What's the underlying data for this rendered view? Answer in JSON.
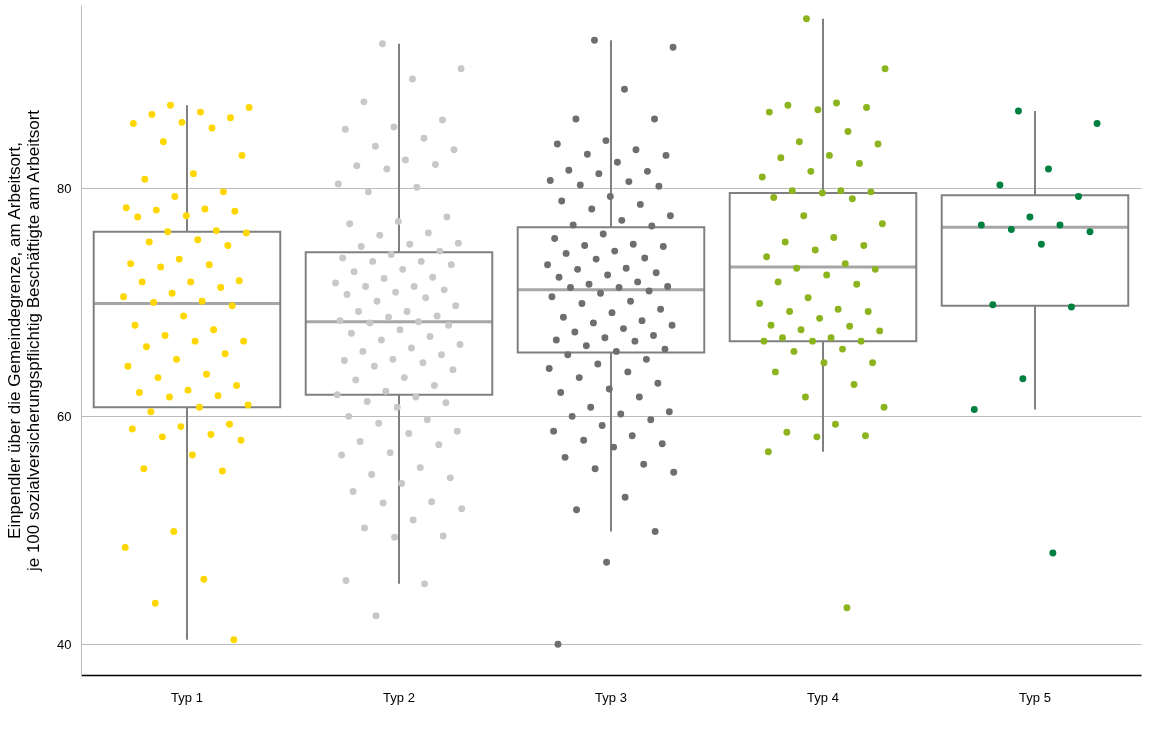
{
  "chart_data": {
    "type": "box",
    "ylabel": "Einpendler über die Gemeindegrenze, am Arbeitsort,\nje 100 sozialversicherungspflichtig Beschäftigte am Arbeitsort",
    "categories": [
      "Typ 1",
      "Typ 2",
      "Typ 3",
      "Typ 4",
      "Typ 5"
    ],
    "boxes": [
      {
        "low": 40.4,
        "q1": 60.8,
        "median": 69.9,
        "q3": 76.2,
        "high": 87.3
      },
      {
        "low": 45.3,
        "q1": 61.9,
        "median": 68.3,
        "q3": 74.4,
        "high": 92.7
      },
      {
        "low": 49.9,
        "q1": 65.6,
        "median": 71.1,
        "q3": 76.6,
        "high": 93.0
      },
      {
        "low": 56.9,
        "q1": 66.6,
        "median": 73.1,
        "q3": 79.6,
        "high": 94.9
      },
      {
        "low": 60.6,
        "q1": 69.7,
        "median": 76.6,
        "q3": 79.4,
        "high": 86.8
      }
    ],
    "ylim": [
      37.3,
      96.1
    ],
    "yticks": [
      40,
      60,
      80
    ],
    "grid": "y",
    "series": [
      {
        "type": "scatter",
        "color": "#ffd700",
        "x": [
          "Typ 1",
          "Typ 1",
          "Typ 1",
          "Typ 1",
          "Typ 1",
          "Typ 1",
          "Typ 1",
          "Typ 1",
          "Typ 1",
          "Typ 1",
          "Typ 1",
          "Typ 1",
          "Typ 1",
          "Typ 1",
          "Typ 1",
          "Typ 1",
          "Typ 1",
          "Typ 1",
          "Typ 1",
          "Typ 1",
          "Typ 1",
          "Typ 1",
          "Typ 1",
          "Typ 1",
          "Typ 1",
          "Typ 1",
          "Typ 1",
          "Typ 1",
          "Typ 1",
          "Typ 1",
          "Typ 1",
          "Typ 1",
          "Typ 1",
          "Typ 1",
          "Typ 1",
          "Typ 1",
          "Typ 1",
          "Typ 1",
          "Typ 1",
          "Typ 1",
          "Typ 1",
          "Typ 1",
          "Typ 1",
          "Typ 1",
          "Typ 1",
          "Typ 1",
          "Typ 1",
          "Typ 1",
          "Typ 1",
          "Typ 1",
          "Typ 1",
          "Typ 1",
          "Typ 1",
          "Typ 1",
          "Typ 1",
          "Typ 1",
          "Typ 1",
          "Typ 1",
          "Typ 1",
          "Typ 1",
          "Typ 1",
          "Typ 1",
          "Typ 1",
          "Typ 1",
          "Typ 1",
          "Typ 1",
          "Typ 1",
          "Typ 1",
          "Typ 1",
          "Typ 1",
          "Typ 1",
          "Typ 1",
          "Typ 1"
        ],
        "values": [
          87.3,
          87.1,
          86.7,
          86.5,
          86.2,
          85.8,
          85.7,
          85.3,
          84.1,
          82.9,
          81.3,
          80.8,
          79.7,
          79.3,
          78.3,
          78.2,
          78.1,
          78.0,
          77.6,
          77.5,
          76.3,
          76.2,
          76.1,
          75.5,
          75.3,
          75.0,
          73.8,
          73.4,
          73.3,
          73.1,
          71.9,
          71.8,
          71.8,
          71.3,
          70.8,
          70.5,
          70.1,
          70.0,
          69.7,
          68.8,
          68.0,
          67.6,
          67.1,
          66.6,
          66.6,
          66.1,
          65.5,
          65.0,
          64.4,
          63.7,
          63.4,
          62.7,
          62.3,
          62.1,
          61.8,
          61.7,
          61.0,
          60.8,
          60.4,
          59.3,
          59.1,
          58.9,
          58.4,
          58.2,
          57.9,
          56.6,
          55.4,
          55.2,
          49.9,
          48.5,
          45.7,
          43.6,
          40.4
        ]
      },
      {
        "type": "scatter",
        "color": "#c8c8c8",
        "x": [
          "Typ 2",
          "Typ 2",
          "Typ 2",
          "Typ 2",
          "Typ 2",
          "Typ 2",
          "Typ 2",
          "Typ 2",
          "Typ 2",
          "Typ 2",
          "Typ 2",
          "Typ 2",
          "Typ 2",
          "Typ 2",
          "Typ 2",
          "Typ 2",
          "Typ 2",
          "Typ 2",
          "Typ 2",
          "Typ 2",
          "Typ 2",
          "Typ 2",
          "Typ 2",
          "Typ 2",
          "Typ 2",
          "Typ 2",
          "Typ 2",
          "Typ 2",
          "Typ 2",
          "Typ 2",
          "Typ 2",
          "Typ 2",
          "Typ 2",
          "Typ 2",
          "Typ 2",
          "Typ 2",
          "Typ 2",
          "Typ 2",
          "Typ 2",
          "Typ 2",
          "Typ 2",
          "Typ 2",
          "Typ 2",
          "Typ 2",
          "Typ 2",
          "Typ 2",
          "Typ 2",
          "Typ 2",
          "Typ 2",
          "Typ 2",
          "Typ 2",
          "Typ 2",
          "Typ 2",
          "Typ 2",
          "Typ 2",
          "Typ 2",
          "Typ 2",
          "Typ 2",
          "Typ 2",
          "Typ 2",
          "Typ 2",
          "Typ 2",
          "Typ 2",
          "Typ 2",
          "Typ 2",
          "Typ 2",
          "Typ 2",
          "Typ 2",
          "Typ 2",
          "Typ 2",
          "Typ 2",
          "Typ 2",
          "Typ 2",
          "Typ 2",
          "Typ 2",
          "Typ 2",
          "Typ 2",
          "Typ 2",
          "Typ 2",
          "Typ 2",
          "Typ 2",
          "Typ 2",
          "Typ 2",
          "Typ 2",
          "Typ 2",
          "Typ 2",
          "Typ 2",
          "Typ 2",
          "Typ 2",
          "Typ 2",
          "Typ 2",
          "Typ 2",
          "Typ 2",
          "Typ 2",
          "Typ 2",
          "Typ 2",
          "Typ 2",
          "Typ 2"
        ],
        "values": [
          92.7,
          90.5,
          89.6,
          87.6,
          86.0,
          85.4,
          85.2,
          84.4,
          83.7,
          83.4,
          82.5,
          82.0,
          82.1,
          81.7,
          80.4,
          80.1,
          79.7,
          77.5,
          77.1,
          76.9,
          76.1,
          75.9,
          75.2,
          75.1,
          74.9,
          74.5,
          74.2,
          73.9,
          73.6,
          73.6,
          73.3,
          72.9,
          72.7,
          72.2,
          72.1,
          71.7,
          71.4,
          71.4,
          71.1,
          70.9,
          70.7,
          70.4,
          70.1,
          69.7,
          69.2,
          69.2,
          68.8,
          68.7,
          68.4,
          68.3,
          68.2,
          68.0,
          67.6,
          67.3,
          67.0,
          66.7,
          66.3,
          66.0,
          65.7,
          65.4,
          65.0,
          64.9,
          64.7,
          64.4,
          64.1,
          63.4,
          63.2,
          62.7,
          62.2,
          61.9,
          61.7,
          61.3,
          61.2,
          60.8,
          60.0,
          59.7,
          59.4,
          58.7,
          58.5,
          57.8,
          57.5,
          56.8,
          56.6,
          55.5,
          54.9,
          54.6,
          54.1,
          53.4,
          52.5,
          52.4,
          51.9,
          50.9,
          50.2,
          49.5,
          49.4,
          45.6,
          45.3,
          42.5
        ]
      },
      {
        "type": "scatter",
        "color": "#6e6e6e",
        "x": [
          "Typ 3",
          "Typ 3",
          "Typ 3",
          "Typ 3",
          "Typ 3",
          "Typ 3",
          "Typ 3",
          "Typ 3",
          "Typ 3",
          "Typ 3",
          "Typ 3",
          "Typ 3",
          "Typ 3",
          "Typ 3",
          "Typ 3",
          "Typ 3",
          "Typ 3",
          "Typ 3",
          "Typ 3",
          "Typ 3",
          "Typ 3",
          "Typ 3",
          "Typ 3",
          "Typ 3",
          "Typ 3",
          "Typ 3",
          "Typ 3",
          "Typ 3",
          "Typ 3",
          "Typ 3",
          "Typ 3",
          "Typ 3",
          "Typ 3",
          "Typ 3",
          "Typ 3",
          "Typ 3",
          "Typ 3",
          "Typ 3",
          "Typ 3",
          "Typ 3",
          "Typ 3",
          "Typ 3",
          "Typ 3",
          "Typ 3",
          "Typ 3",
          "Typ 3",
          "Typ 3",
          "Typ 3",
          "Typ 3",
          "Typ 3",
          "Typ 3",
          "Typ 3",
          "Typ 3",
          "Typ 3",
          "Typ 3",
          "Typ 3",
          "Typ 3",
          "Typ 3",
          "Typ 3",
          "Typ 3",
          "Typ 3",
          "Typ 3",
          "Typ 3",
          "Typ 3",
          "Typ 3",
          "Typ 3",
          "Typ 3",
          "Typ 3",
          "Typ 3",
          "Typ 3",
          "Typ 3",
          "Typ 3",
          "Typ 3",
          "Typ 3",
          "Typ 3",
          "Typ 3",
          "Typ 3",
          "Typ 3",
          "Typ 3",
          "Typ 3",
          "Typ 3",
          "Typ 3",
          "Typ 3",
          "Typ 3",
          "Typ 3",
          "Typ 3",
          "Typ 3",
          "Typ 3",
          "Typ 3",
          "Typ 3",
          "Typ 3",
          "Typ 3",
          "Typ 3",
          "Typ 3",
          "Typ 3",
          "Typ 3"
        ],
        "values": [
          93.0,
          92.4,
          88.7,
          86.1,
          86.1,
          84.2,
          83.9,
          83.4,
          83.0,
          82.9,
          82.3,
          81.6,
          81.5,
          81.3,
          80.7,
          80.6,
          80.3,
          80.2,
          79.3,
          78.9,
          78.6,
          78.2,
          77.6,
          77.2,
          76.8,
          76.7,
          76.0,
          75.6,
          75.1,
          75.0,
          74.9,
          74.5,
          74.3,
          73.9,
          73.8,
          73.3,
          73.0,
          72.9,
          72.6,
          72.4,
          72.2,
          71.8,
          71.6,
          71.4,
          71.3,
          71.3,
          71.0,
          70.8,
          70.5,
          70.1,
          69.9,
          69.4,
          69.1,
          68.7,
          68.4,
          68.2,
          68.0,
          67.7,
          67.4,
          67.1,
          66.9,
          66.7,
          66.6,
          66.2,
          65.9,
          65.7,
          65.4,
          65.0,
          64.6,
          64.2,
          63.9,
          63.4,
          62.9,
          62.4,
          62.1,
          61.7,
          60.8,
          60.4,
          60.2,
          60.0,
          59.7,
          59.2,
          58.7,
          58.3,
          57.9,
          57.6,
          57.3,
          56.4,
          55.8,
          55.4,
          55.1,
          52.9,
          51.8,
          49.9,
          47.2,
          40.0
        ]
      },
      {
        "type": "scatter",
        "color": "#8cb41e",
        "x": [
          "Typ 4",
          "Typ 4",
          "Typ 4",
          "Typ 4",
          "Typ 4",
          "Typ 4",
          "Typ 4",
          "Typ 4",
          "Typ 4",
          "Typ 4",
          "Typ 4",
          "Typ 4",
          "Typ 4",
          "Typ 4",
          "Typ 4",
          "Typ 4",
          "Typ 4",
          "Typ 4",
          "Typ 4",
          "Typ 4",
          "Typ 4",
          "Typ 4",
          "Typ 4",
          "Typ 4",
          "Typ 4",
          "Typ 4",
          "Typ 4",
          "Typ 4",
          "Typ 4",
          "Typ 4",
          "Typ 4",
          "Typ 4",
          "Typ 4",
          "Typ 4",
          "Typ 4",
          "Typ 4",
          "Typ 4",
          "Typ 4",
          "Typ 4",
          "Typ 4",
          "Typ 4",
          "Typ 4",
          "Typ 4",
          "Typ 4",
          "Typ 4",
          "Typ 4",
          "Typ 4",
          "Typ 4",
          "Typ 4",
          "Typ 4",
          "Typ 4",
          "Typ 4",
          "Typ 4",
          "Typ 4",
          "Typ 4",
          "Typ 4",
          "Typ 4",
          "Typ 4",
          "Typ 4",
          "Typ 4",
          "Typ 4",
          "Typ 4",
          "Typ 4"
        ],
        "values": [
          94.9,
          90.5,
          87.5,
          87.3,
          87.1,
          86.9,
          86.7,
          85.0,
          84.1,
          83.9,
          82.9,
          82.7,
          82.2,
          81.5,
          81.0,
          79.8,
          79.8,
          79.7,
          79.6,
          79.2,
          79.1,
          77.6,
          76.9,
          75.7,
          75.3,
          75.0,
          74.6,
          74.0,
          73.4,
          73.0,
          72.9,
          72.4,
          71.8,
          71.6,
          70.4,
          69.9,
          69.4,
          69.2,
          69.2,
          68.6,
          68.0,
          67.9,
          67.6,
          67.5,
          66.9,
          66.9,
          66.6,
          66.6,
          66.6,
          65.9,
          65.7,
          64.7,
          64.7,
          63.9,
          62.8,
          61.7,
          60.8,
          59.3,
          58.6,
          58.3,
          58.2,
          56.9,
          43.2
        ]
      },
      {
        "type": "scatter",
        "color": "#008040",
        "x": [
          "Typ 5",
          "Typ 5",
          "Typ 5",
          "Typ 5",
          "Typ 5",
          "Typ 5",
          "Typ 5",
          "Typ 5",
          "Typ 5",
          "Typ 5",
          "Typ 5",
          "Typ 5",
          "Typ 5",
          "Typ 5",
          "Typ 5",
          "Typ 5"
        ],
        "values": [
          86.8,
          85.7,
          81.7,
          80.3,
          79.3,
          77.5,
          76.8,
          76.8,
          76.4,
          76.2,
          75.1,
          69.8,
          69.6,
          63.3,
          60.6,
          48.0
        ]
      }
    ]
  }
}
